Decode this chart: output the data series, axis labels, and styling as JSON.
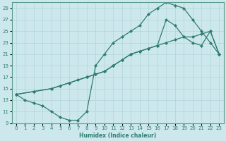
{
  "xlabel": "Humidex (Indice chaleur)",
  "ylabel": "",
  "bg_color": "#cce8ec",
  "grid_color": "#b0d4d8",
  "line_color": "#2e7d6e",
  "xlim": [
    -0.5,
    23.5
  ],
  "ylim": [
    9,
    30
  ],
  "xticks": [
    0,
    1,
    2,
    3,
    4,
    5,
    6,
    7,
    8,
    9,
    10,
    11,
    12,
    13,
    14,
    15,
    16,
    17,
    18,
    19,
    20,
    21,
    22,
    23
  ],
  "yticks": [
    9,
    11,
    13,
    15,
    17,
    19,
    21,
    23,
    25,
    27,
    29
  ],
  "line1_x": [
    0,
    1,
    2,
    3,
    4,
    5,
    6,
    7,
    8,
    9,
    10,
    11,
    12,
    13,
    14,
    15,
    16,
    17,
    18,
    19,
    20,
    21,
    22,
    23
  ],
  "line1_y": [
    14,
    13,
    12.5,
    12,
    11,
    10,
    9.5,
    9.5,
    11,
    19,
    21,
    23,
    24,
    25,
    26,
    28,
    29,
    30,
    29.5,
    29,
    27,
    25,
    23,
    21
  ],
  "line2_x": [
    0,
    2,
    4,
    6,
    8,
    9,
    10,
    11,
    12,
    13,
    14,
    15,
    16,
    17,
    18,
    19,
    20,
    21,
    22,
    23
  ],
  "line2_y": [
    14,
    14.5,
    15,
    16,
    17,
    17.5,
    18,
    19,
    20,
    21,
    21.5,
    22,
    22.5,
    27,
    26,
    24,
    23,
    22.5,
    25,
    21
  ],
  "line3_x": [
    0,
    2,
    4,
    5,
    6,
    7,
    8,
    9,
    10,
    11,
    12,
    13,
    14,
    15,
    16,
    17,
    18,
    19,
    20,
    21,
    22,
    23
  ],
  "line3_y": [
    14,
    14.5,
    15,
    15.5,
    16,
    16.5,
    17,
    17.5,
    18,
    19,
    20,
    21,
    21.5,
    22,
    22.5,
    23,
    23.5,
    24,
    24,
    24.5,
    25,
    21
  ]
}
